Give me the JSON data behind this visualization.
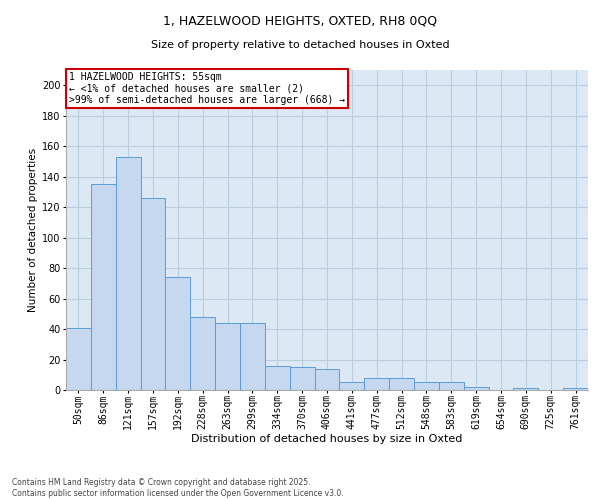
{
  "title_line1": "1, HAZELWOOD HEIGHTS, OXTED, RH8 0QQ",
  "title_line2": "Size of property relative to detached houses in Oxted",
  "xlabel": "Distribution of detached houses by size in Oxted",
  "ylabel": "Number of detached properties",
  "categories": [
    "50sqm",
    "86sqm",
    "121sqm",
    "157sqm",
    "192sqm",
    "228sqm",
    "263sqm",
    "299sqm",
    "334sqm",
    "370sqm",
    "406sqm",
    "441sqm",
    "477sqm",
    "512sqm",
    "548sqm",
    "583sqm",
    "619sqm",
    "654sqm",
    "690sqm",
    "725sqm",
    "761sqm"
  ],
  "values": [
    41,
    135,
    153,
    126,
    74,
    48,
    44,
    44,
    16,
    15,
    14,
    5,
    8,
    8,
    5,
    5,
    2,
    0,
    1,
    0,
    1
  ],
  "bar_color": "#c5d8f0",
  "bar_edge_color": "#5b9bd5",
  "annotation_box_text": "1 HAZELWOOD HEIGHTS: 55sqm\n← <1% of detached houses are smaller (2)\n>99% of semi-detached houses are larger (668) →",
  "annotation_box_color": "#ffffff",
  "annotation_box_edge_color": "#cc0000",
  "ylim": [
    0,
    210
  ],
  "yticks": [
    0,
    20,
    40,
    60,
    80,
    100,
    120,
    140,
    160,
    180,
    200
  ],
  "grid_color": "#b8cfe0",
  "background_color": "#dce9f5",
  "footer_text": "Contains HM Land Registry data © Crown copyright and database right 2025.\nContains public sector information licensed under the Open Government Licence v3.0.",
  "title_fontsize": 9,
  "subtitle_fontsize": 8,
  "xlabel_fontsize": 8,
  "ylabel_fontsize": 7.5,
  "tick_fontsize": 7,
  "annotation_fontsize": 7,
  "footer_fontsize": 5.5
}
